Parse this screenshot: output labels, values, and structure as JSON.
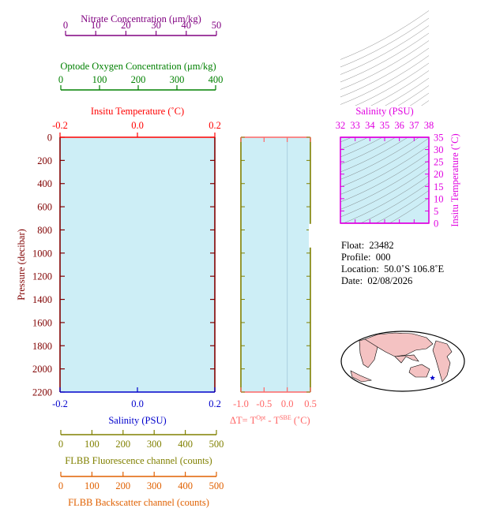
{
  "colors": {
    "nitrate": "#800080",
    "oxygen": "#008000",
    "temperature": "#ff0000",
    "salinity": "#0000cc",
    "pressure": "#800000",
    "delta": "#ff6666",
    "fluorescence": "#808000",
    "backscatter": "#e06000",
    "ts_axis": "#e000e0",
    "plot_bg": "#cdeef6",
    "ts_contour": "#666666",
    "land": "#f4c2c2",
    "float_marker": "#0000cc"
  },
  "chart_data": [
    {
      "type": "line",
      "name": "profile-panel",
      "ylabel": "Pressure (decibar)",
      "ylim": [
        0,
        2200
      ],
      "yticks": [
        "0",
        "200",
        "400",
        "600",
        "800",
        "1000",
        "1200",
        "1400",
        "1600",
        "1800",
        "2000",
        "2200"
      ],
      "ytick_values": [
        0,
        200,
        400,
        600,
        800,
        1000,
        1200,
        1400,
        1600,
        1800,
        2000,
        2200
      ],
      "y_reversed": true,
      "axes": {
        "nitrate": {
          "label": "Nitrate Concentration (μm/kg)",
          "range": [
            0,
            50
          ],
          "ticks": [
            "0",
            "10",
            "20",
            "30",
            "40",
            "50"
          ],
          "tick_values": [
            0,
            10,
            20,
            30,
            40,
            50
          ]
        },
        "oxygen": {
          "label": "Optode Oxygen Concentration (μm/kg)",
          "range": [
            0,
            400
          ],
          "ticks": [
            "0",
            "100",
            "200",
            "300",
            "400"
          ],
          "tick_values": [
            0,
            100,
            200,
            300,
            400
          ]
        },
        "temperature": {
          "label": "Insitu Temperature (˚C)",
          "range": [
            -0.2,
            0.2
          ],
          "ticks": [
            "-0.2",
            "0.0",
            "0.2"
          ],
          "tick_values": [
            -0.2,
            0,
            0.2
          ]
        },
        "salinity": {
          "label": "Salinity (PSU)",
          "range": [
            -0.2,
            0.2
          ],
          "ticks": [
            "-0.2",
            "0.0",
            "0.2"
          ],
          "tick_values": [
            -0.2,
            0,
            0.2
          ]
        },
        "fluorescence": {
          "label": "FLBB Fluorescence channel (counts)",
          "range": [
            0,
            500
          ],
          "ticks": [
            "0",
            "100",
            "200",
            "300",
            "400",
            "500"
          ],
          "tick_values": [
            0,
            100,
            200,
            300,
            400,
            500
          ]
        },
        "backscatter": {
          "label": "FLBB Backscatter channel (counts)",
          "range": [
            0,
            500
          ],
          "ticks": [
            "0",
            "100",
            "200",
            "300",
            "400",
            "500"
          ],
          "tick_values": [
            0,
            100,
            200,
            300,
            400,
            500
          ]
        }
      },
      "series": []
    },
    {
      "type": "line",
      "name": "delta-panel",
      "xlabel_main": "ΔT= T",
      "xlabel_sup1": "Opt",
      "xlabel_mid": " - T",
      "xlabel_sup2": "SBE",
      "xlabel_end": " (˚C)",
      "xlim": [
        -1.0,
        0.5
      ],
      "xticks": [
        "-1.0",
        "-0.5",
        "0.0",
        "0.5"
      ],
      "xtick_values": [
        -1.0,
        -0.5,
        0.0,
        0.5
      ],
      "ylim": [
        0,
        2200
      ],
      "series": []
    },
    {
      "type": "scatter",
      "name": "ts-diagram",
      "xlabel": "Salinity (PSU)",
      "ylabel": "Insitu Temperature (˚C)",
      "xlim": [
        32,
        38
      ],
      "ylim": [
        0,
        35
      ],
      "xticks": [
        "32",
        "33",
        "34",
        "35",
        "36",
        "37",
        "38"
      ],
      "xtick_values": [
        32,
        33,
        34,
        35,
        36,
        37,
        38
      ],
      "yticks": [
        "0",
        "5",
        "10",
        "15",
        "20",
        "25",
        "30",
        "35"
      ],
      "ytick_values": [
        0,
        5,
        10,
        15,
        20,
        25,
        30,
        35
      ],
      "series": []
    }
  ],
  "info": {
    "float_label": "Float:",
    "float_value": "23482",
    "profile_label": "Profile:",
    "profile_value": "000",
    "location_label": "Location:",
    "location_value": "50.0˚S  106.8˚E",
    "date_label": "Date:",
    "date_value": "02/08/2026"
  },
  "float_position": {
    "lat": -50.0,
    "lon": 106.8
  }
}
